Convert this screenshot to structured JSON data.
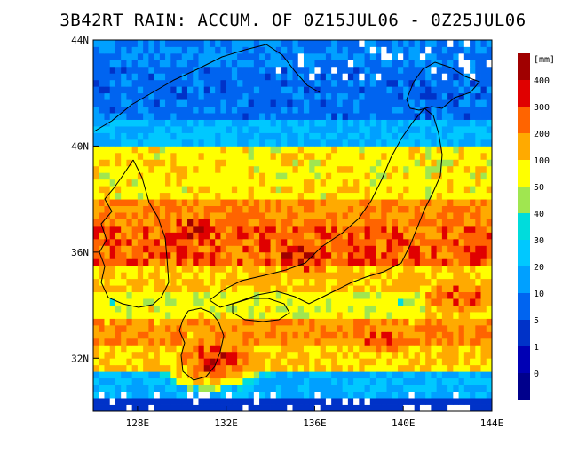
{
  "title": "3B42RT RAIN: ACCUM. OF 0Z15JUL06 - 0Z25JUL06",
  "lon_ticks": [
    "128E",
    "132E",
    "136E",
    "140E",
    "144E"
  ],
  "lat_ticks": [
    "44N",
    "40N",
    "36N",
    "32N"
  ],
  "colorbar": {
    "unit_label": "[mm]",
    "labels": [
      "400",
      "300",
      "200",
      "100",
      "50",
      "40",
      "30",
      "20",
      "10",
      "5",
      "1",
      "0"
    ],
    "colors": [
      "#a00000",
      "#e00000",
      "#ff6400",
      "#ffaa00",
      "#ffff00",
      "#a0e650",
      "#00dcdc",
      "#00c8ff",
      "#00a0ff",
      "#0064f0",
      "#0032c8",
      "#0000b4",
      "#00008c"
    ]
  },
  "chart_data": {
    "type": "heatmap",
    "title": "3B42RT RAIN: ACCUM. OF 0Z15JUL06 - 0Z25JUL06",
    "xlim": [
      126,
      144
    ],
    "ylim": [
      30,
      44
    ],
    "unit": "mm",
    "levels": [
      0,
      1,
      5,
      10,
      20,
      30,
      40,
      50,
      100,
      200,
      300,
      400
    ],
    "bands": [
      {
        "lat": [
          43,
          44
        ],
        "mm": 10
      },
      {
        "lat": [
          41,
          43
        ],
        "mm": 8
      },
      {
        "lat": [
          40,
          41
        ],
        "mm": 20
      },
      {
        "lat": [
          38,
          40
        ],
        "mm": 80
      },
      {
        "lat": [
          37,
          38
        ],
        "mm": 200
      },
      {
        "lat": [
          35.5,
          37
        ],
        "mm": 250
      },
      {
        "lat": [
          34.5,
          35.5
        ],
        "mm": 120
      },
      {
        "lat": [
          33.5,
          34.5
        ],
        "mm": 70
      },
      {
        "lat": [
          32.5,
          33.5
        ],
        "mm": 180
      },
      {
        "lat": [
          31.5,
          32.5
        ],
        "mm": 100
      },
      {
        "lat": [
          30.5,
          31.5
        ],
        "mm": 20
      },
      {
        "lat": [
          30,
          30.5
        ],
        "mm": 3
      }
    ],
    "maxima": [
      {
        "lon": 130.5,
        "lat": 36.8,
        "mm": 400
      },
      {
        "lon": 135.5,
        "lat": 35.9,
        "mm": 400
      },
      {
        "lon": 131.5,
        "lat": 31.9,
        "mm": 400
      },
      {
        "lon": 139.0,
        "lat": 32.8,
        "mm": 300
      },
      {
        "lon": 142.5,
        "lat": 34.3,
        "mm": 300
      }
    ]
  }
}
